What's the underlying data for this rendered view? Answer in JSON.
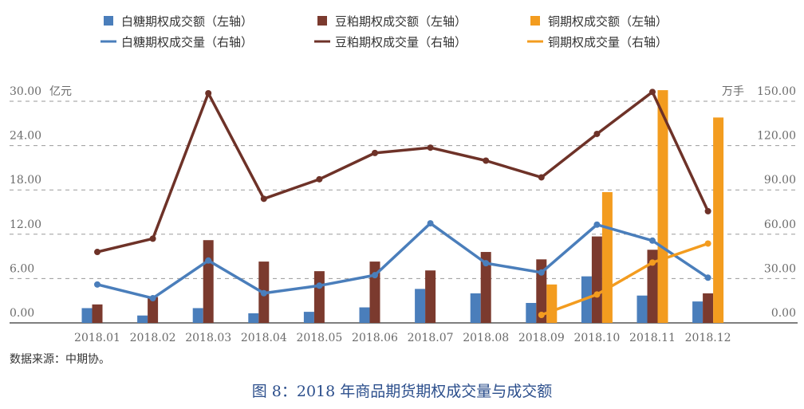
{
  "chart_data": {
    "type": "bar+line",
    "title": "图 8：2018 年商品期货期权成交量与成交额",
    "source": "数据来源：中期协。",
    "categories": [
      "2018.01",
      "2018.02",
      "2018.03",
      "2018.04",
      "2018.05",
      "2018.06",
      "2018.07",
      "2018.08",
      "2018.09",
      "2018.10",
      "2018.11",
      "2018.12"
    ],
    "left_axis": {
      "unit": "亿元",
      "range": [
        0,
        30
      ],
      "ticks": [
        "0.00",
        "6.00",
        "12.00",
        "18.00",
        "24.00",
        "30.00"
      ]
    },
    "right_axis": {
      "unit": "万手",
      "range": [
        0,
        150
      ],
      "ticks": [
        "0.00",
        "30.00",
        "60.00",
        "90.00",
        "120.00",
        "150.00"
      ]
    },
    "grid": "horizontal dashed",
    "legend_position": "top",
    "bar_series": [
      {
        "name": "白糖期权成交额（左轴）",
        "color": "#4a7ebb",
        "values": [
          2.0,
          1.0,
          2.0,
          1.3,
          1.5,
          2.1,
          4.6,
          4.0,
          2.7,
          6.3,
          3.7,
          2.9
        ]
      },
      {
        "name": "豆粕期权成交额（左轴）",
        "color": "#7b3a2e",
        "values": [
          2.5,
          3.5,
          11.2,
          8.3,
          7.0,
          8.3,
          7.1,
          9.6,
          8.6,
          11.7,
          9.9,
          4.0
        ]
      },
      {
        "name": "铜期权成交额（左轴）",
        "color": "#f39c1f",
        "values": [
          null,
          null,
          null,
          null,
          null,
          null,
          null,
          null,
          5.2,
          17.7,
          31.5,
          27.8
        ]
      }
    ],
    "line_series": [
      {
        "name": "白糖期权成交量（右轴）",
        "color": "#4a7ebb",
        "values": [
          26.0,
          16.7,
          42.2,
          20.1,
          25.2,
          32.3,
          67.4,
          40.4,
          34.1,
          66.5,
          55.7,
          30.6
        ]
      },
      {
        "name": "豆粕期权成交量（右轴）",
        "color": "#6e3228",
        "values": [
          48.0,
          57.0,
          155.4,
          84.0,
          97.2,
          115.0,
          118.6,
          109.8,
          98.5,
          127.9,
          156.3,
          75.6
        ]
      },
      {
        "name": "铜期权成交量（右轴）",
        "color": "#f39c1f",
        "values": [
          null,
          null,
          null,
          null,
          null,
          null,
          null,
          null,
          5.4,
          19.2,
          40.8,
          53.7
        ]
      }
    ]
  }
}
